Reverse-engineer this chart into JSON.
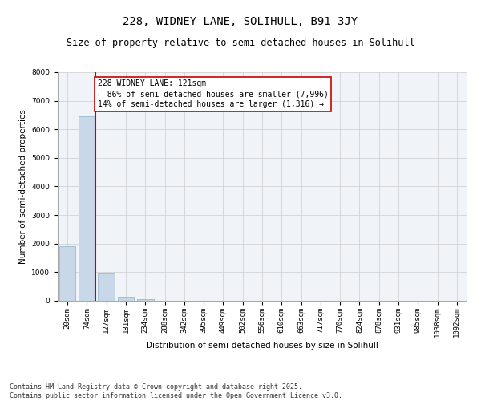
{
  "title1": "228, WIDNEY LANE, SOLIHULL, B91 3JY",
  "title2": "Size of property relative to semi-detached houses in Solihull",
  "xlabel": "Distribution of semi-detached houses by size in Solihull",
  "ylabel": "Number of semi-detached properties",
  "categories": [
    "20sqm",
    "74sqm",
    "127sqm",
    "181sqm",
    "234sqm",
    "288sqm",
    "342sqm",
    "395sqm",
    "449sqm",
    "502sqm",
    "556sqm",
    "610sqm",
    "663sqm",
    "717sqm",
    "770sqm",
    "824sqm",
    "878sqm",
    "931sqm",
    "985sqm",
    "1038sqm",
    "1092sqm"
  ],
  "values": [
    1900,
    6450,
    960,
    140,
    60,
    0,
    0,
    0,
    0,
    0,
    0,
    0,
    0,
    0,
    0,
    0,
    0,
    0,
    0,
    0,
    0
  ],
  "bar_color": "#c8d8e8",
  "bar_edge_color": "#8ab0cc",
  "annotation_text": "228 WIDNEY LANE: 121sqm\n← 86% of semi-detached houses are smaller (7,996)\n14% of semi-detached houses are larger (1,316) →",
  "vline_color": "#cc0000",
  "annotation_box_color": "#ffffff",
  "annotation_box_edge": "#cc0000",
  "ylim": [
    0,
    8000
  ],
  "yticks": [
    0,
    1000,
    2000,
    3000,
    4000,
    5000,
    6000,
    7000,
    8000
  ],
  "grid_color": "#cccccc",
  "bg_color": "#f0f4f8",
  "footer_text": "Contains HM Land Registry data © Crown copyright and database right 2025.\nContains public sector information licensed under the Open Government Licence v3.0.",
  "title_fontsize": 10,
  "subtitle_fontsize": 8.5,
  "axis_label_fontsize": 7.5,
  "tick_fontsize": 6.5,
  "annotation_fontsize": 7,
  "footer_fontsize": 6
}
